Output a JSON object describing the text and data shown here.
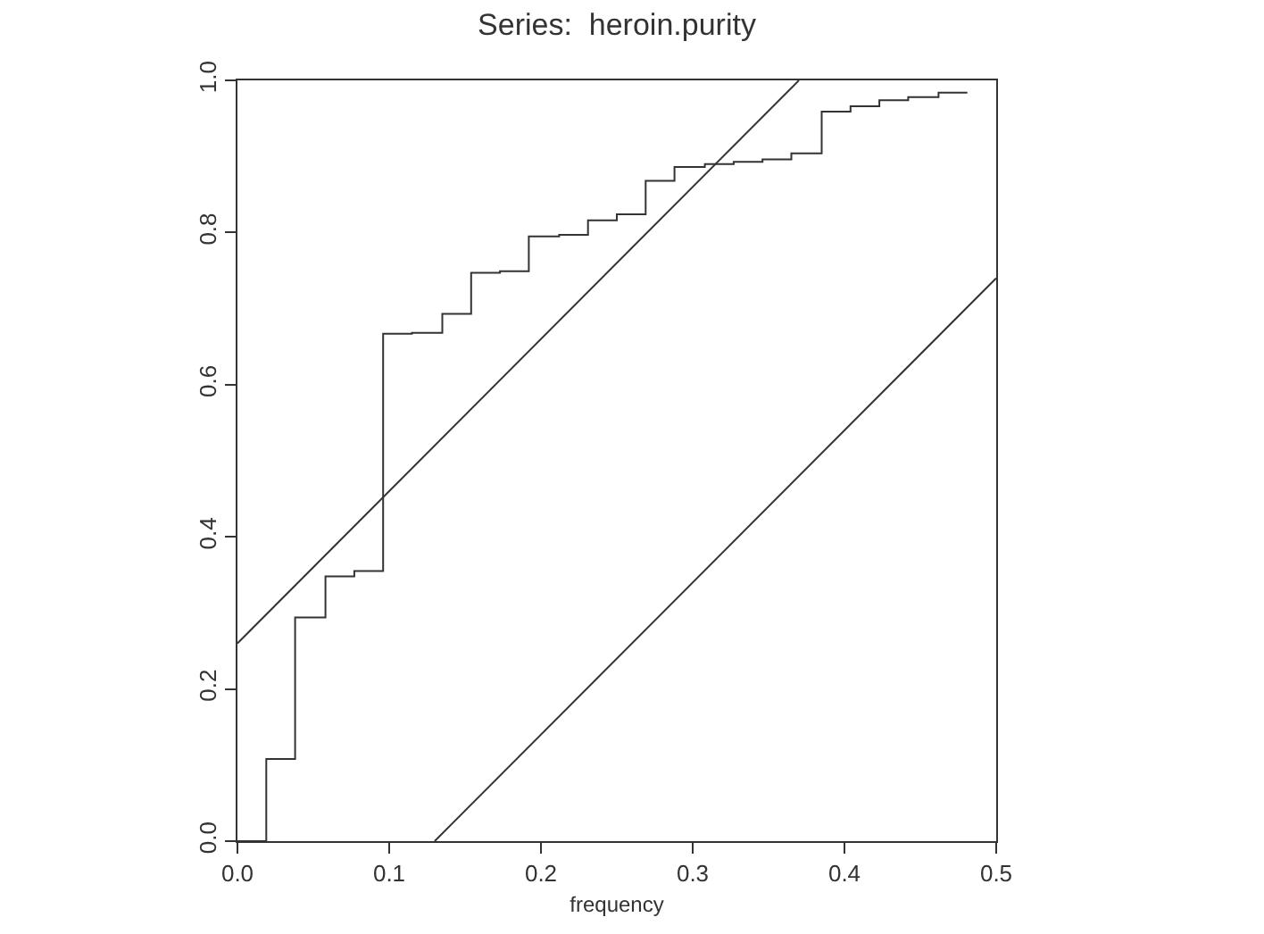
{
  "chart_data": {
    "type": "step",
    "title": "Series:  heroin.purity",
    "xlabel": "frequency",
    "xlim": [
      0,
      0.5
    ],
    "xticks": [
      {
        "value": 0,
        "label": "0.0"
      },
      0.1,
      0.2,
      0.3,
      0.4,
      0.5
    ],
    "ylim": [
      0,
      1
    ],
    "yticks": [
      {
        "value": 0,
        "label": "0.0"
      },
      0.2,
      0.4,
      0.6,
      0.8,
      {
        "value": 1,
        "label": "1.0"
      }
    ],
    "series": [
      {
        "color": "#333333",
        "x": [
          0,
          0.019,
          0.038,
          0.058,
          0.077,
          0.096,
          0.115,
          0.135,
          0.154,
          0.173,
          0.192,
          0.212,
          0.231,
          0.25,
          0.269,
          0.288,
          0.308,
          0.327,
          0.346,
          0.365,
          0.385,
          0.404,
          0.423,
          0.442,
          0.462,
          0.481
        ],
        "values": [
          0,
          0.108,
          0.294,
          0.348,
          0.355,
          0.667,
          0.668,
          0.693,
          0.747,
          0.749,
          0.795,
          0.797,
          0.816,
          0.824,
          0.868,
          0.886,
          0.89,
          0.893,
          0.896,
          0.904,
          0.959,
          0.966,
          0.974,
          0.978,
          0.984,
          0.984
        ]
      },
      {
        "type": "line",
        "color": "#333333",
        "x": [
          0,
          0.37
        ],
        "values": [
          0.26,
          1.0
        ]
      },
      {
        "type": "line",
        "color": "#333333",
        "x": [
          0.13,
          0.5
        ],
        "values": [
          0,
          0.74
        ]
      }
    ]
  }
}
